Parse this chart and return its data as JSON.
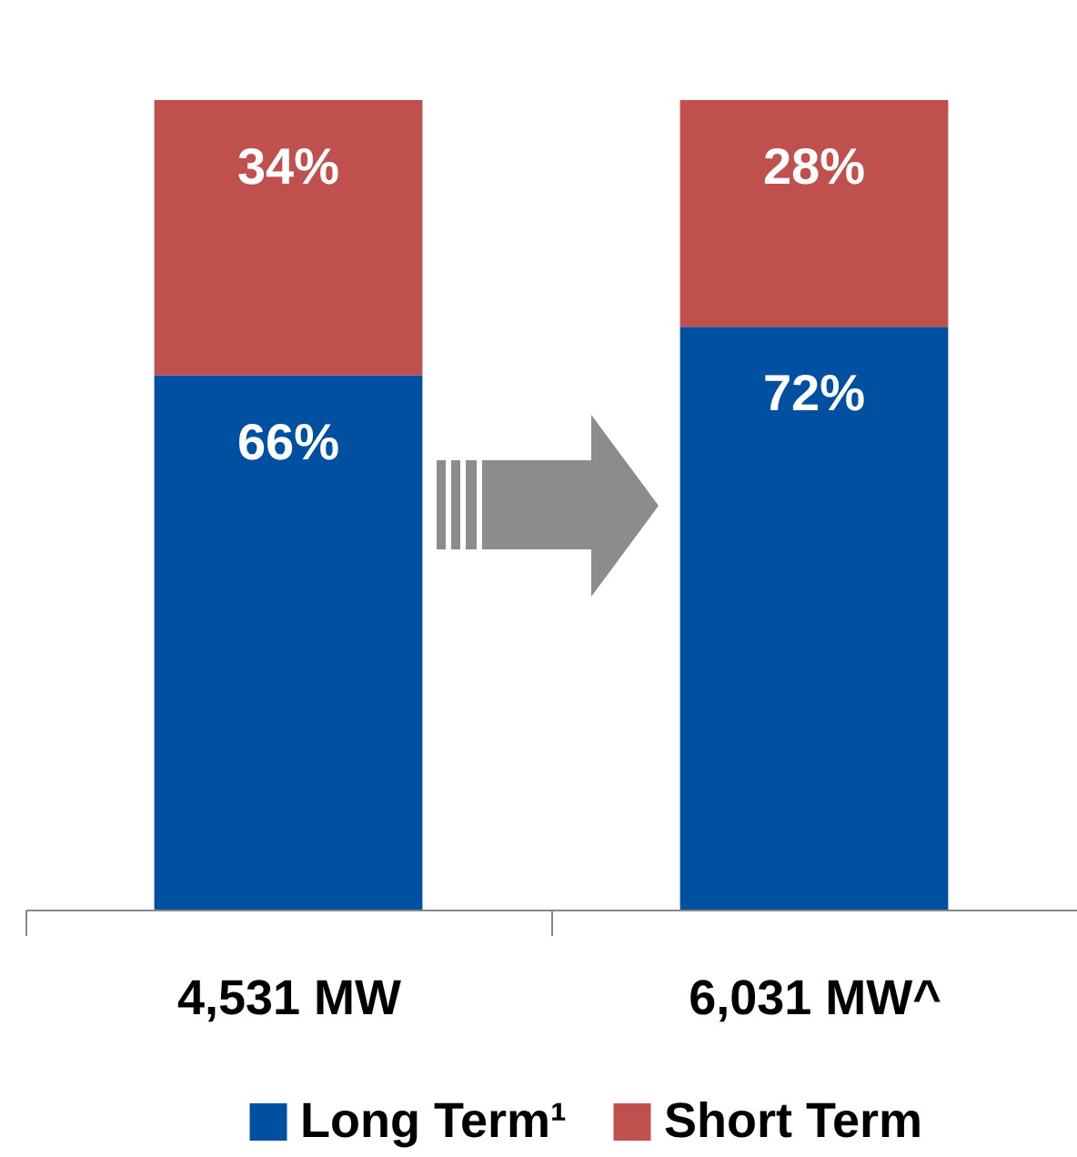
{
  "chart_data": {
    "type": "bar",
    "stacked": true,
    "legend": "bottom",
    "grid": false,
    "categories": [
      "4,531 MW",
      "6,031 MW^"
    ],
    "series": [
      {
        "name": "Long Term¹",
        "color": "#0050a2",
        "values": [
          66,
          72
        ],
        "value_labels": [
          "66%",
          "72%"
        ]
      },
      {
        "name": "Short Term",
        "color": "#c0504d",
        "values": [
          34,
          28
        ],
        "value_labels": [
          "34%",
          "28%"
        ]
      }
    ]
  }
}
